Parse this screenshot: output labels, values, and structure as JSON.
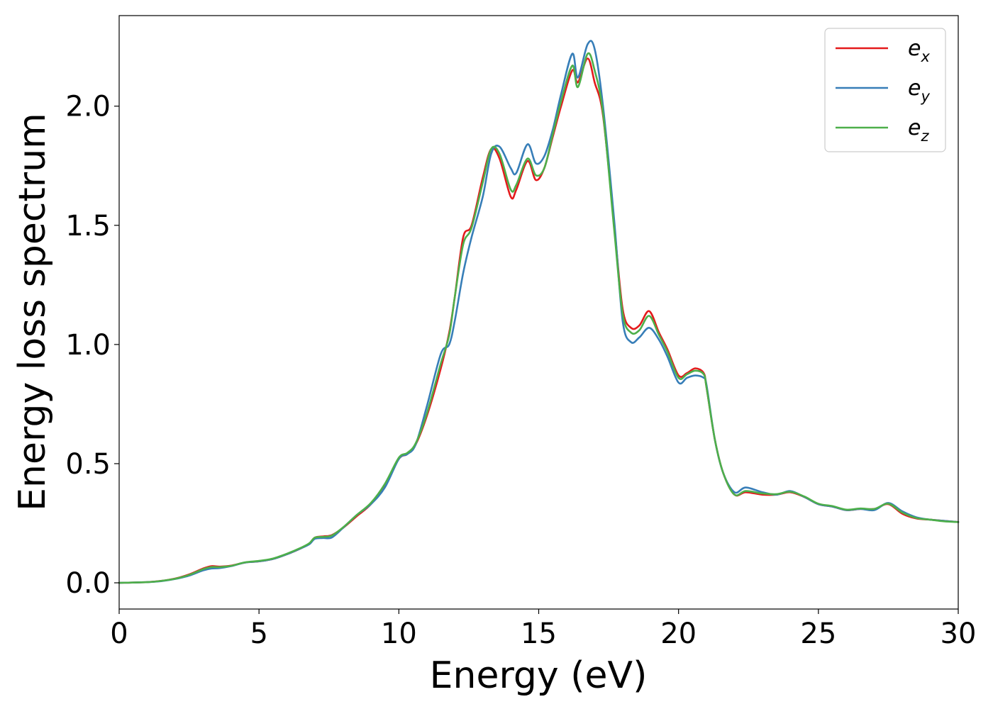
{
  "chart_data": {
    "type": "line",
    "xlabel": "Energy (eV)",
    "ylabel": "Energy loss spectrum",
    "xlim": [
      0,
      30
    ],
    "ylim": [
      -0.11,
      2.38
    ],
    "xticks": [
      0,
      5,
      10,
      15,
      20,
      25,
      30
    ],
    "xtick_labels": [
      "0",
      "5",
      "10",
      "15",
      "20",
      "25",
      "30"
    ],
    "yticks": [
      0.0,
      0.5,
      1.0,
      1.5,
      2.0
    ],
    "ytick_labels": [
      "0.0",
      "0.5",
      "1.0",
      "1.5",
      "2.0"
    ],
    "grid": false,
    "legend_position": "top-right",
    "series": [
      {
        "name": "e",
        "sub": "x",
        "color": "#e41a1c",
        "x": [
          0,
          1,
          1.5,
          2,
          2.5,
          3,
          3.3,
          3.6,
          4,
          4.5,
          5,
          5.5,
          6,
          6.5,
          6.8,
          7,
          7.3,
          7.6,
          8,
          8.5,
          9,
          9.5,
          10,
          10.3,
          10.6,
          11,
          11.5,
          11.8,
          12,
          12.3,
          12.6,
          13,
          13.3,
          13.6,
          14,
          14.2,
          14.6,
          14.9,
          15.2,
          15.5,
          15.8,
          16.2,
          16.4,
          16.75,
          17,
          17.3,
          17.7,
          18,
          18.3,
          18.6,
          18.95,
          19.3,
          19.6,
          20,
          20.3,
          20.6,
          20.9,
          21,
          21.3,
          21.6,
          22,
          22.4,
          23,
          23.5,
          24,
          24.5,
          25,
          25.5,
          26,
          26.5,
          27,
          27.5,
          28,
          28.5,
          29,
          29.5,
          30
        ],
        "y": [
          0,
          0.003,
          0.008,
          0.018,
          0.035,
          0.06,
          0.07,
          0.068,
          0.072,
          0.085,
          0.09,
          0.1,
          0.12,
          0.145,
          0.165,
          0.19,
          0.195,
          0.2,
          0.23,
          0.28,
          0.33,
          0.41,
          0.52,
          0.54,
          0.58,
          0.7,
          0.9,
          1.05,
          1.2,
          1.45,
          1.5,
          1.7,
          1.82,
          1.78,
          1.62,
          1.65,
          1.77,
          1.69,
          1.74,
          1.87,
          2.0,
          2.15,
          2.1,
          2.2,
          2.1,
          1.96,
          1.5,
          1.15,
          1.07,
          1.08,
          1.14,
          1.05,
          0.98,
          0.87,
          0.88,
          0.9,
          0.88,
          0.82,
          0.6,
          0.46,
          0.37,
          0.38,
          0.37,
          0.37,
          0.38,
          0.36,
          0.33,
          0.32,
          0.305,
          0.31,
          0.31,
          0.33,
          0.29,
          0.27,
          0.265,
          0.26,
          0.255
        ]
      },
      {
        "name": "e",
        "sub": "y",
        "color": "#377eb8",
        "x": [
          0,
          1,
          1.5,
          2,
          2.5,
          3,
          3.3,
          3.6,
          4,
          4.5,
          5,
          5.5,
          6,
          6.5,
          6.8,
          7,
          7.3,
          7.6,
          8,
          8.5,
          9,
          9.5,
          10,
          10.3,
          10.6,
          11,
          11.5,
          11.8,
          12,
          12.3,
          12.6,
          13,
          13.3,
          13.6,
          14,
          14.2,
          14.6,
          14.9,
          15.2,
          15.5,
          15.8,
          16.2,
          16.4,
          16.75,
          17,
          17.3,
          17.7,
          18,
          18.3,
          18.6,
          18.95,
          19.3,
          19.6,
          20,
          20.3,
          20.6,
          20.9,
          21,
          21.3,
          21.6,
          22,
          22.4,
          23,
          23.5,
          24,
          24.5,
          25,
          25.5,
          26,
          26.5,
          27,
          27.5,
          28,
          28.5,
          29,
          29.5,
          30
        ],
        "y": [
          0,
          0.003,
          0.007,
          0.016,
          0.03,
          0.052,
          0.06,
          0.062,
          0.07,
          0.085,
          0.09,
          0.1,
          0.12,
          0.145,
          0.162,
          0.185,
          0.188,
          0.19,
          0.23,
          0.285,
          0.33,
          0.4,
          0.52,
          0.54,
          0.58,
          0.74,
          0.96,
          1.0,
          1.1,
          1.3,
          1.45,
          1.62,
          1.8,
          1.83,
          1.74,
          1.72,
          1.84,
          1.76,
          1.79,
          1.9,
          2.05,
          2.22,
          2.12,
          2.26,
          2.24,
          2.0,
          1.52,
          1.1,
          1.01,
          1.03,
          1.07,
          1.02,
          0.95,
          0.84,
          0.86,
          0.87,
          0.86,
          0.83,
          0.6,
          0.46,
          0.38,
          0.4,
          0.38,
          0.37,
          0.385,
          0.36,
          0.33,
          0.32,
          0.305,
          0.31,
          0.305,
          0.335,
          0.3,
          0.275,
          0.265,
          0.26,
          0.255
        ]
      },
      {
        "name": "e",
        "sub": "z",
        "color": "#4daf4a",
        "x": [
          0,
          1,
          1.5,
          2,
          2.5,
          3,
          3.3,
          3.6,
          4,
          4.5,
          5,
          5.5,
          6,
          6.5,
          6.8,
          7,
          7.3,
          7.6,
          8,
          8.5,
          9,
          9.5,
          10,
          10.3,
          10.6,
          11,
          11.5,
          11.8,
          12,
          12.3,
          12.6,
          13,
          13.3,
          13.6,
          14,
          14.2,
          14.6,
          14.9,
          15.2,
          15.5,
          15.8,
          16.2,
          16.4,
          16.75,
          17,
          17.3,
          17.7,
          18,
          18.3,
          18.6,
          18.95,
          19.3,
          19.6,
          20,
          20.3,
          20.6,
          20.9,
          21,
          21.3,
          21.6,
          22,
          22.4,
          23,
          23.5,
          24,
          24.5,
          25,
          25.5,
          26,
          26.5,
          27,
          27.5,
          28,
          28.5,
          29,
          29.5,
          30
        ],
        "y": [
          0,
          0.003,
          0.008,
          0.017,
          0.033,
          0.057,
          0.066,
          0.066,
          0.071,
          0.086,
          0.092,
          0.102,
          0.122,
          0.147,
          0.166,
          0.19,
          0.193,
          0.198,
          0.232,
          0.285,
          0.335,
          0.415,
          0.525,
          0.545,
          0.585,
          0.71,
          0.92,
          1.04,
          1.2,
          1.42,
          1.49,
          1.68,
          1.82,
          1.8,
          1.65,
          1.67,
          1.78,
          1.71,
          1.74,
          1.88,
          2.02,
          2.17,
          2.08,
          2.22,
          2.15,
          1.97,
          1.48,
          1.13,
          1.05,
          1.06,
          1.12,
          1.04,
          0.97,
          0.86,
          0.875,
          0.89,
          0.875,
          0.82,
          0.6,
          0.46,
          0.37,
          0.385,
          0.375,
          0.372,
          0.382,
          0.362,
          0.332,
          0.322,
          0.307,
          0.312,
          0.31,
          0.332,
          0.295,
          0.272,
          0.265,
          0.258,
          0.255
        ]
      }
    ]
  }
}
